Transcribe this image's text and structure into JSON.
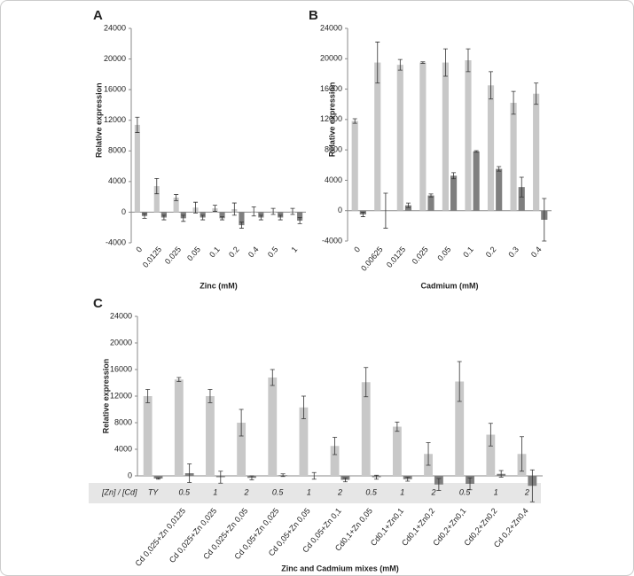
{
  "chart_data": [
    {
      "type": "bar",
      "title": "A",
      "x_label": "Zinc (mM)",
      "y_label": "Relative expression",
      "categories": [
        "0",
        "0.0125",
        "0.025",
        "0.05",
        "0.1",
        "0.2",
        "0.4",
        "0.5",
        "1"
      ],
      "series": [
        {
          "color": "#c8c8c8",
          "values": [
            11400,
            3400,
            1900,
            600,
            500,
            400,
            100,
            100,
            100
          ],
          "errors": [
            1000,
            1000,
            400,
            700,
            400,
            800,
            600,
            400,
            400
          ]
        },
        {
          "color": "#7f7f7f",
          "values": [
            -500,
            -700,
            -800,
            -700,
            -800,
            -1700,
            -700,
            -700,
            -1100
          ],
          "errors": [
            300,
            300,
            400,
            300,
            200,
            400,
            300,
            300,
            400
          ]
        }
      ],
      "ylim": [
        -4000,
        24000
      ],
      "yticks": [
        -4000,
        0,
        4000,
        8000,
        12000,
        16000,
        20000,
        24000
      ]
    },
    {
      "type": "bar",
      "title": "B",
      "x_label": "Cadmium (mM)",
      "y_label": "Relative expression",
      "categories": [
        "0",
        "0.00625",
        "0.0125",
        "0.025",
        "0.05",
        "0.1",
        "0.2",
        "0.3",
        "0.4"
      ],
      "series": [
        {
          "color": "#c8c8c8",
          "values": [
            11800,
            19500,
            19200,
            19500,
            19500,
            19800,
            16500,
            14200,
            15400
          ],
          "errors": [
            300,
            2700,
            700,
            100,
            1800,
            1500,
            1800,
            1500,
            1400
          ]
        },
        {
          "color": "#7f7f7f",
          "values": [
            -500,
            0,
            700,
            2000,
            4600,
            7800,
            5500,
            3100,
            -1200
          ],
          "errors": [
            300,
            2300,
            300,
            200,
            400,
            100,
            300,
            1300,
            2800
          ]
        }
      ],
      "ylim": [
        -4000,
        24000
      ],
      "yticks": [
        -4000,
        0,
        4000,
        8000,
        12000,
        16000,
        20000,
        24000
      ]
    },
    {
      "type": "bar",
      "title": "C",
      "x_label": "Zinc and Cadmium mixes (mM)",
      "y_label": "Relative expression",
      "categories": [
        null,
        "Cd 0,025+Zn 0,0125",
        "Cd 0,025+Zn 0,025",
        "Cd 0,025+Zn 0,05",
        "Cd 0,05+Zn 0,025",
        "Cd 0,05+Zn 0,05",
        "Cd 0,05+Zn 0,1",
        "Cd0,1+Zn 0,05",
        "Cd0,1+Zn0,1",
        "Cd0,1+Zn0,2",
        "Cd0,2+Zn0,1",
        "Cd0,2+Zn0,2",
        "Cd 0,2+Zn0,4"
      ],
      "series": [
        {
          "color": "#c8c8c8",
          "values": [
            12000,
            14500,
            12000,
            8000,
            14800,
            10300,
            4500,
            14100,
            7400,
            3300,
            14200,
            6200,
            3300
          ],
          "errors": [
            1000,
            300,
            1000,
            2000,
            1200,
            1700,
            1300,
            2200,
            700,
            1700,
            3000,
            1700,
            2600
          ]
        },
        {
          "color": "#7f7f7f",
          "values": [
            -400,
            400,
            -200,
            -300,
            100,
            0,
            -600,
            -200,
            -500,
            -1300,
            -1200,
            300,
            -1500
          ],
          "errors": [
            100,
            1400,
            900,
            300,
            200,
            500,
            300,
            300,
            300,
            900,
            900,
            500,
            2400
          ]
        }
      ],
      "ratio_row": {
        "label": "[Zn] / [Cd]",
        "values": [
          "TY",
          0.5,
          1,
          2,
          0.5,
          1,
          2,
          0.5,
          1,
          2,
          0.5,
          1,
          2
        ]
      },
      "ylim": [
        -4000,
        24000
      ],
      "yticks": [
        0,
        4000,
        8000,
        12000,
        16000,
        20000,
        24000
      ]
    }
  ]
}
